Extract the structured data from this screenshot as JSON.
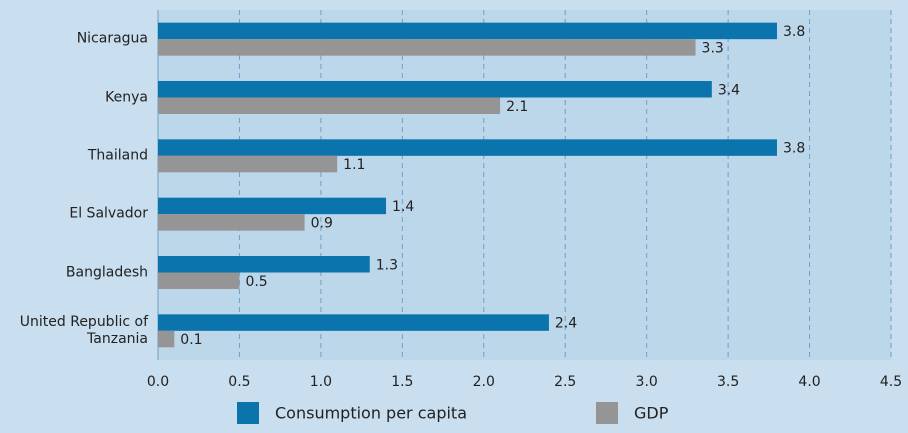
{
  "chart_data": {
    "type": "bar",
    "orientation": "horizontal",
    "categories": [
      "Nicaragua",
      "Kenya",
      "Thailand",
      "El Salvador",
      "Bangladesh",
      "United Republic of Tanzania"
    ],
    "series": [
      {
        "name": "Consumption per capita",
        "color": "#0b74ac",
        "values": [
          3.8,
          3.4,
          3.8,
          1.4,
          1.3,
          2.4
        ]
      },
      {
        "name": "GDP",
        "color": "#959595",
        "values": [
          3.3,
          2.1,
          1.1,
          0.9,
          0.5,
          0.1
        ]
      }
    ],
    "xlim": [
      0,
      4.5
    ],
    "xticks": [
      {
        "value": 0,
        "label": "0.0"
      },
      {
        "value": 0.5,
        "label": "0.5"
      },
      {
        "value": 1,
        "label": "1.0"
      },
      {
        "value": 1.5,
        "label": "1.5"
      },
      {
        "value": 2,
        "label": "2.0"
      },
      {
        "value": 2.5,
        "label": "2.5"
      },
      {
        "value": 3,
        "label": "3.0"
      },
      {
        "value": 3.5,
        "label": "3.5"
      },
      {
        "value": 4,
        "label": "4.0"
      },
      {
        "value": 4.5,
        "label": "4.5"
      }
    ],
    "grid": true,
    "legend": "bottom"
  }
}
